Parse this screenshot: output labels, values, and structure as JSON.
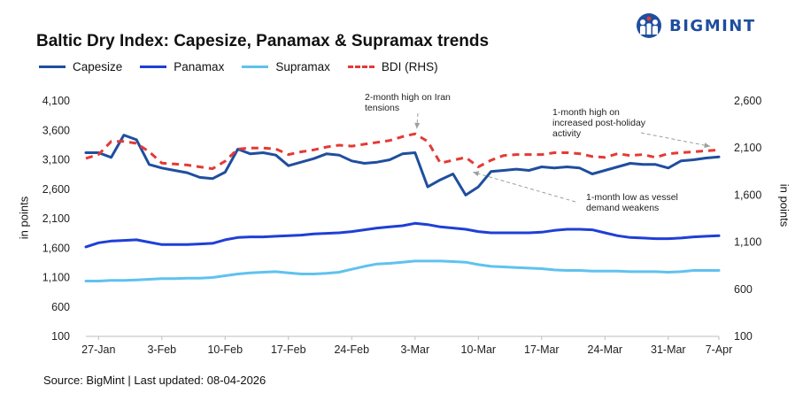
{
  "brand": {
    "name": "BIGMINT",
    "color": "#1f4e9e"
  },
  "title": "Baltic Dry Index: Capesize, Panamax & Supramax trends",
  "source": "Source: BigMint | Last updated: 08-04-2026",
  "colors": {
    "capesize": "#1f4e9e",
    "panamax": "#1f3fd6",
    "supramax": "#5fc2ef",
    "bdi": "#e53935"
  },
  "chart_data": {
    "type": "line",
    "x": [
      "26-Jan",
      "27-Jan",
      "28-Jan",
      "29-Jan",
      "30-Jan",
      "2-Feb",
      "3-Feb",
      "4-Feb",
      "5-Feb",
      "6-Feb",
      "9-Feb",
      "10-Feb",
      "11-Feb",
      "12-Feb",
      "13-Feb",
      "16-Feb",
      "17-Feb",
      "18-Feb",
      "19-Feb",
      "20-Feb",
      "23-Feb",
      "24-Feb",
      "25-Feb",
      "26-Feb",
      "27-Feb",
      "2-Mar",
      "3-Mar",
      "4-Mar",
      "5-Mar",
      "6-Mar",
      "9-Mar",
      "10-Mar",
      "11-Mar",
      "12-Mar",
      "13-Mar",
      "16-Mar",
      "17-Mar",
      "18-Mar",
      "19-Mar",
      "20-Mar",
      "23-Mar",
      "24-Mar",
      "25-Mar",
      "26-Mar",
      "27-Mar",
      "30-Mar",
      "31-Mar",
      "1-Apr",
      "2-Apr",
      "6-Apr",
      "7-Apr"
    ],
    "x_ticks": [
      "27-Jan",
      "3-Feb",
      "10-Feb",
      "17-Feb",
      "24-Feb",
      "3-Mar",
      "10-Mar",
      "17-Mar",
      "24-Mar",
      "31-Mar",
      "7-Apr"
    ],
    "series": [
      {
        "name": "Capesize",
        "axis": "left",
        "style": "solid",
        "values": [
          3220,
          3220,
          3140,
          3520,
          3440,
          3020,
          2960,
          2920,
          2880,
          2800,
          2780,
          2890,
          3280,
          3200,
          3220,
          3180,
          3000,
          3060,
          3120,
          3200,
          3180,
          3080,
          3040,
          3060,
          3100,
          3200,
          3220,
          2640,
          2760,
          2860,
          2500,
          2640,
          2900,
          2920,
          2940,
          2920,
          2980,
          2960,
          2980,
          2960,
          2860,
          2920,
          2980,
          3040,
          3020,
          3020,
          2960,
          3080,
          3100,
          3130,
          3150
        ]
      },
      {
        "name": "Panamax",
        "axis": "left",
        "style": "solid",
        "values": [
          1620,
          1690,
          1720,
          1730,
          1740,
          1700,
          1660,
          1660,
          1660,
          1670,
          1680,
          1740,
          1780,
          1790,
          1790,
          1800,
          1810,
          1820,
          1840,
          1850,
          1860,
          1880,
          1910,
          1940,
          1960,
          1980,
          2020,
          2000,
          1960,
          1940,
          1920,
          1880,
          1860,
          1860,
          1860,
          1860,
          1870,
          1900,
          1920,
          1920,
          1910,
          1860,
          1810,
          1780,
          1770,
          1760,
          1760,
          1770,
          1790,
          1800,
          1810
        ]
      },
      {
        "name": "Supramax",
        "axis": "left",
        "style": "solid",
        "values": [
          1040,
          1040,
          1050,
          1050,
          1060,
          1070,
          1080,
          1080,
          1090,
          1090,
          1100,
          1130,
          1160,
          1180,
          1190,
          1200,
          1180,
          1160,
          1160,
          1170,
          1190,
          1240,
          1290,
          1330,
          1340,
          1360,
          1380,
          1380,
          1380,
          1370,
          1360,
          1320,
          1290,
          1280,
          1270,
          1260,
          1250,
          1230,
          1220,
          1220,
          1210,
          1210,
          1210,
          1200,
          1200,
          1200,
          1190,
          1200,
          1220,
          1220,
          1220
        ]
      },
      {
        "name": "BDI (RHS)",
        "axis": "right",
        "style": "dashed",
        "values": [
          1990,
          2030,
          2170,
          2170,
          2150,
          2060,
          1940,
          1930,
          1920,
          1900,
          1880,
          1960,
          2090,
          2100,
          2100,
          2090,
          2030,
          2060,
          2080,
          2110,
          2130,
          2120,
          2140,
          2160,
          2180,
          2220,
          2250,
          2170,
          1940,
          1970,
          2000,
          1900,
          1970,
          2020,
          2030,
          2030,
          2030,
          2050,
          2050,
          2040,
          2010,
          2000,
          2040,
          2020,
          2030,
          2000,
          2040,
          2050,
          2060,
          2070,
          2080
        ]
      }
    ],
    "y_left": {
      "label": "in points",
      "ticks": [
        "100",
        "600",
        "1,100",
        "1,600",
        "2,100",
        "2,600",
        "3,100",
        "3,600",
        "4,100"
      ],
      "ylim": [
        100,
        4100
      ]
    },
    "y_right": {
      "label": "in points",
      "ticks": [
        "100",
        "600",
        "1,100",
        "1,600",
        "2,100",
        "2,600"
      ],
      "ylim": [
        100,
        2600
      ]
    },
    "grid": false,
    "legend": "top-left",
    "annotations": [
      {
        "text": "2-month high on Iran\ntensions",
        "x": "3-Mar",
        "series": "BDI (RHS)"
      },
      {
        "text": "1-month high on\nincreased post-holiday\nactivity",
        "x": "7-Apr",
        "series": "BDI (RHS)"
      },
      {
        "text": "1-month low as vessel\ndemand weakens",
        "x": "10-Mar",
        "series": "BDI (RHS)"
      }
    ]
  }
}
